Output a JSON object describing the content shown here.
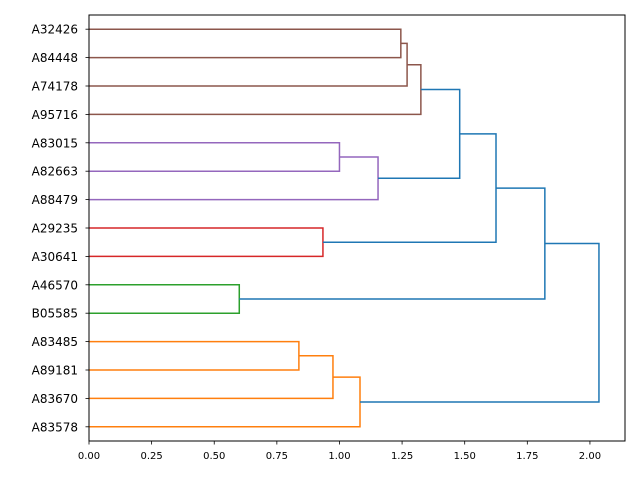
{
  "chart_data": {
    "type": "dendrogram",
    "orientation": "right",
    "title": "",
    "xlabel": "",
    "ylabel": "",
    "xlim": [
      0,
      2.14
    ],
    "xticks": [
      "0.00",
      "0.25",
      "0.50",
      "0.75",
      "1.00",
      "1.25",
      "1.50",
      "1.75",
      "2.00"
    ],
    "leaves": [
      "A32426",
      "A84448",
      "A74178",
      "A95716",
      "A83015",
      "A82663",
      "A88479",
      "A29235",
      "A30641",
      "A46570",
      "B05585",
      "A83485",
      "A89181",
      "A83670",
      "A83578"
    ],
    "colors": {
      "brown": "#8c564b",
      "purple": "#9467bd",
      "red": "#d62728",
      "green": "#2ca02c",
      "orange": "#ff7f0e",
      "blue": "#1f77b4"
    },
    "links": [
      {
        "id": 15,
        "a": 0,
        "b": 1,
        "height": 1.245,
        "color": "brown"
      },
      {
        "id": 16,
        "a": 15,
        "b": 2,
        "height": 1.27,
        "color": "brown"
      },
      {
        "id": 17,
        "a": 16,
        "b": 3,
        "height": 1.325,
        "color": "brown"
      },
      {
        "id": 18,
        "a": 4,
        "b": 5,
        "height": 1.0,
        "color": "purple"
      },
      {
        "id": 19,
        "a": 18,
        "b": 6,
        "height": 1.154,
        "color": "purple"
      },
      {
        "id": 20,
        "a": 17,
        "b": 19,
        "height": 1.48,
        "color": "blue"
      },
      {
        "id": 21,
        "a": 7,
        "b": 8,
        "height": 0.934,
        "color": "red"
      },
      {
        "id": 22,
        "a": 20,
        "b": 21,
        "height": 1.625,
        "color": "blue"
      },
      {
        "id": 23,
        "a": 9,
        "b": 10,
        "height": 0.6,
        "color": "green"
      },
      {
        "id": 24,
        "a": 22,
        "b": 23,
        "height": 1.82,
        "color": "blue"
      },
      {
        "id": 25,
        "a": 11,
        "b": 12,
        "height": 0.838,
        "color": "orange"
      },
      {
        "id": 26,
        "a": 25,
        "b": 13,
        "height": 0.974,
        "color": "orange"
      },
      {
        "id": 27,
        "a": 26,
        "b": 14,
        "height": 1.082,
        "color": "orange"
      },
      {
        "id": 28,
        "a": 24,
        "b": 27,
        "height": 2.036,
        "color": "blue"
      }
    ]
  }
}
